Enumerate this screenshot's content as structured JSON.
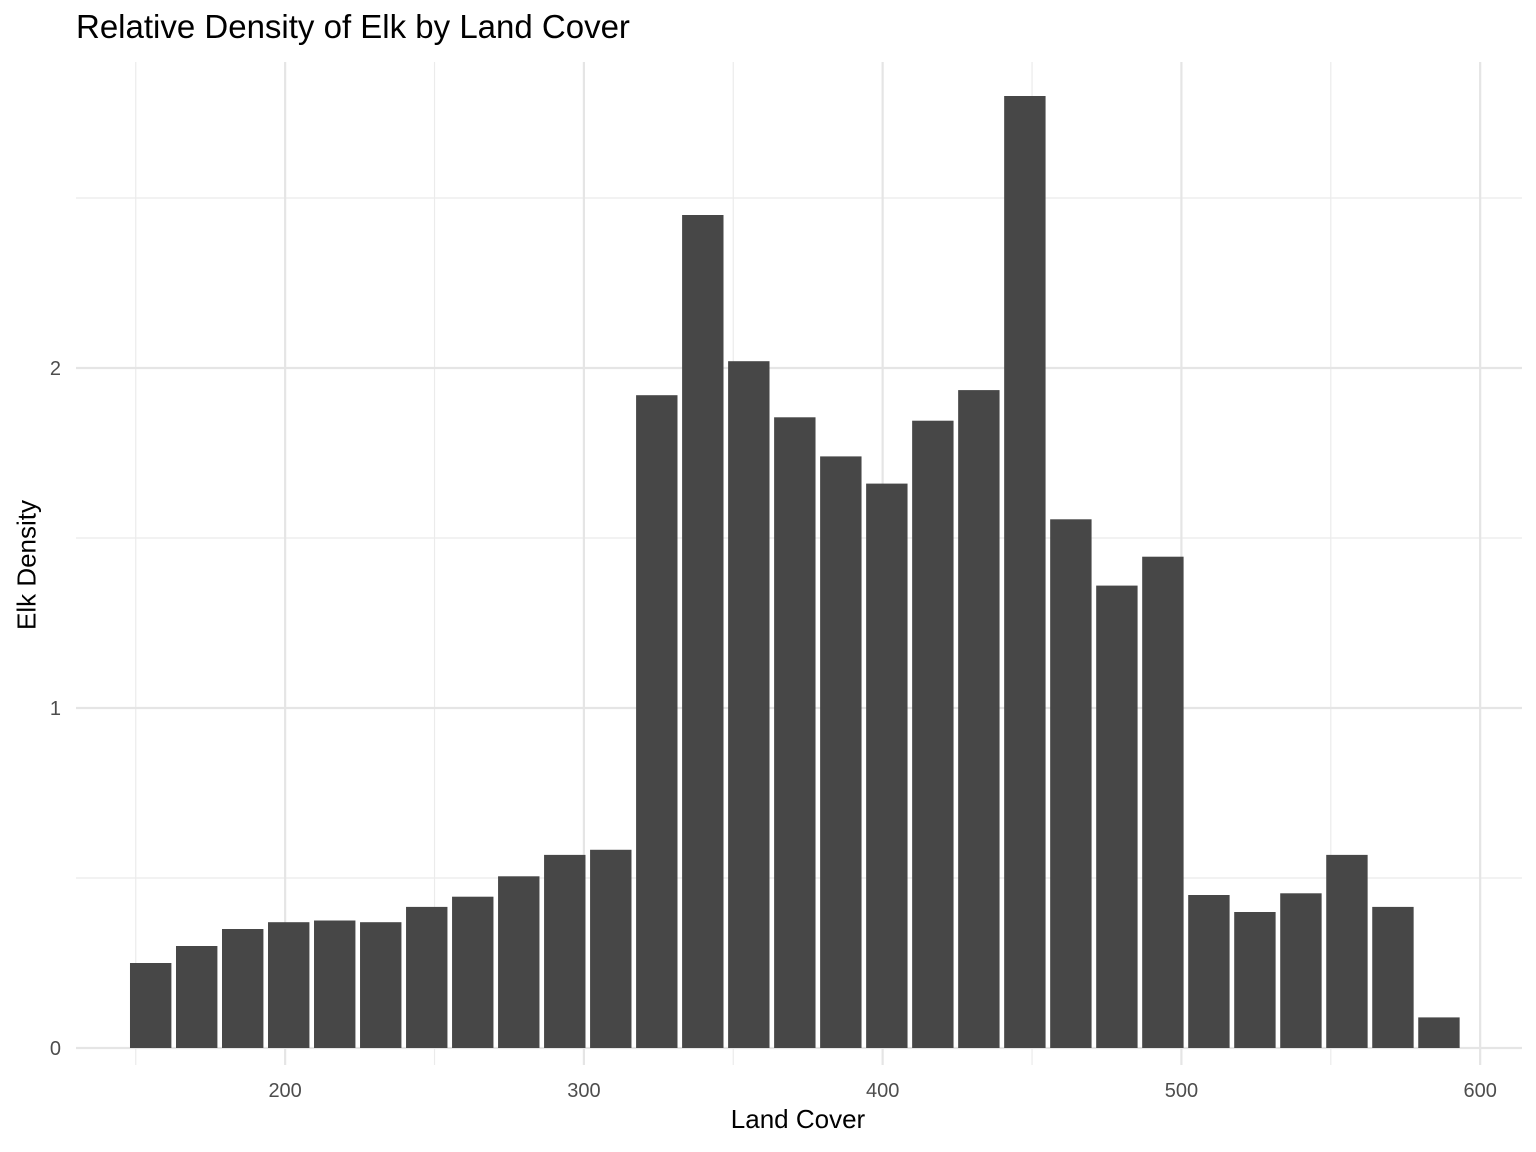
{
  "chart_data": {
    "type": "bar",
    "title": "Relative Density of Elk by Land Cover",
    "xlabel": "Land Cover",
    "ylabel": "Elk Density",
    "xlim": [
      130,
      614
    ],
    "ylim": [
      -0.05,
      2.9
    ],
    "x_ticks": [
      200,
      300,
      400,
      500,
      600
    ],
    "y_ticks": [
      0,
      1,
      2
    ],
    "bin_width": 15.4,
    "x": [
      155,
      170.4,
      185.8,
      201.2,
      216.6,
      232,
      247.4,
      262.8,
      278.2,
      293.6,
      309,
      324.4,
      339.8,
      355.2,
      370.6,
      386,
      401.4,
      416.8,
      432.2,
      447.6,
      463,
      478.4,
      493.8,
      509.2,
      524.6,
      540,
      555.4,
      570.8,
      586.2
    ],
    "values": [
      0.25,
      0.3,
      0.35,
      0.37,
      0.375,
      0.37,
      0.415,
      0.445,
      0.505,
      0.568,
      0.583,
      1.92,
      2.45,
      2.02,
      1.855,
      1.74,
      1.66,
      1.845,
      1.935,
      2.8,
      1.555,
      1.36,
      1.445,
      0.45,
      0.4,
      0.455,
      0.568,
      0.415,
      0.09
    ],
    "bar_color": "#474747",
    "grid": true
  }
}
